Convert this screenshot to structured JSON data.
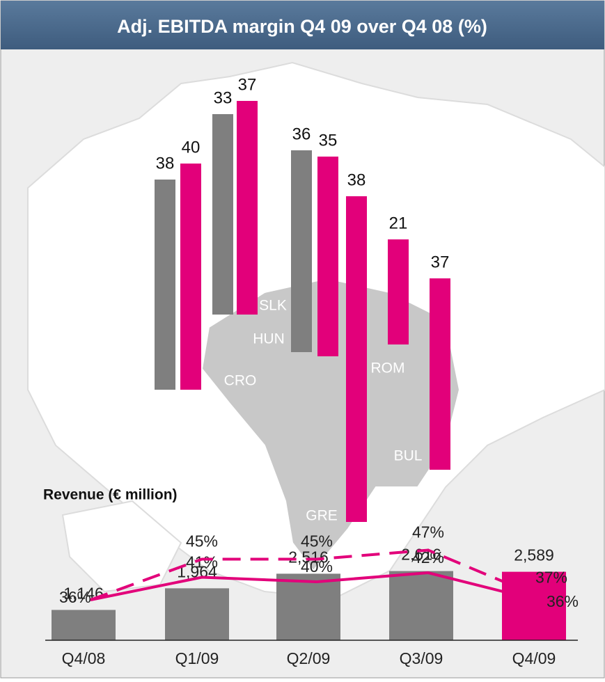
{
  "title": "Adj. EBITDA margin Q4 09 over Q4 08 (%)",
  "margins": {
    "bars": [
      {
        "value": 38,
        "color": "#7f7f7f"
      },
      {
        "value": 40,
        "color": "#e2007a"
      },
      {
        "value": 33,
        "color": "#7f7f7f"
      },
      {
        "value": 37,
        "color": "#e2007a"
      },
      {
        "value": 36,
        "color": "#7f7f7f"
      },
      {
        "value": 35,
        "color": "#e2007a"
      },
      {
        "value": 38,
        "color": "#e2007a"
      },
      {
        "value": 21,
        "color": "#e2007a"
      },
      {
        "value": 37,
        "color": "#e2007a"
      }
    ]
  },
  "countries": [
    "SLK",
    "HUN",
    "CRO",
    "ROM",
    "BUL",
    "GRE"
  ],
  "chart_data": {
    "type": "bar",
    "title": "Revenue (€ million)",
    "categories": [
      "Q4/08",
      "Q1/09",
      "Q2/09",
      "Q3/09",
      "Q4/09"
    ],
    "values": [
      1146,
      1964,
      2516,
      2616,
      2589
    ],
    "value_labels": [
      "1,146",
      "1,964",
      "2,516",
      "2,616",
      "2,589"
    ],
    "colors": [
      "#7f7f7f",
      "#7f7f7f",
      "#7f7f7f",
      "#7f7f7f",
      "#e2007a"
    ],
    "lines": [
      {
        "color": "#e2007a",
        "dashed": false,
        "values": [
          36,
          41,
          40,
          42,
          36
        ],
        "value_labels": [
          "36%",
          "41%",
          "40%",
          "42%",
          "36%"
        ]
      },
      {
        "color": "#e2007a",
        "dashed": true,
        "values": [
          36,
          45,
          45,
          47,
          37
        ],
        "value_labels": [
          null,
          "45%",
          "45%",
          "47%",
          "37%"
        ]
      }
    ]
  }
}
